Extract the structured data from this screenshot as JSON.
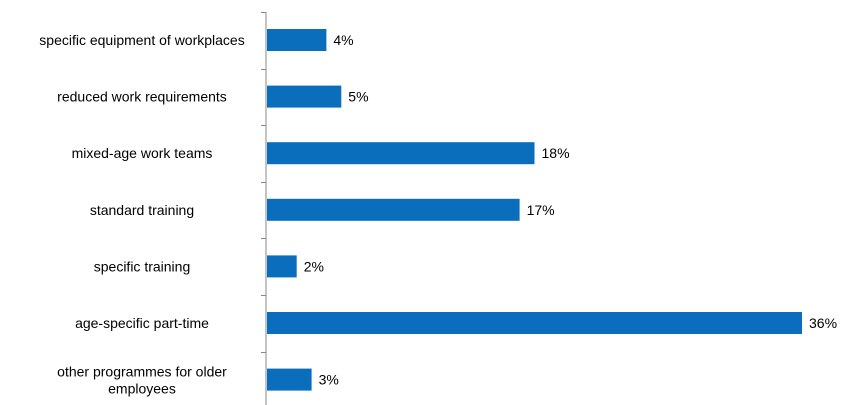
{
  "chart_data": {
    "type": "bar",
    "orientation": "horizontal",
    "categories": [
      "specific equipment of workplaces",
      "reduced work requirements",
      "mixed-age work teams",
      "standard training",
      "specific training",
      "age-specific part-time",
      "other programmes for older employees"
    ],
    "values": [
      4,
      5,
      18,
      17,
      2,
      36,
      3
    ],
    "value_labels": [
      "4%",
      "5%",
      "18%",
      "17%",
      "2%",
      "36%",
      "3%"
    ],
    "unit": "%",
    "bar_color": "#0A6EBD",
    "title": "",
    "xlabel": "",
    "ylabel": "",
    "grid": false,
    "legend": "none"
  }
}
